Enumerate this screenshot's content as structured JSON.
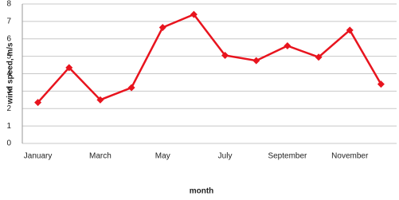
{
  "chart_data": {
    "type": "line",
    "x_label": "month",
    "y_label": "wind speed, m/s",
    "categories": [
      "January",
      null,
      "March",
      null,
      "May",
      null,
      "July",
      null,
      "September",
      null,
      "November",
      null
    ],
    "series": [
      {
        "name": "wind speed",
        "color": "#e8141e",
        "values": [
          2.35,
          4.35,
          2.5,
          3.2,
          6.65,
          7.4,
          5.05,
          4.75,
          5.6,
          4.95,
          6.5,
          3.4
        ]
      }
    ],
    "ylim": [
      0,
      8
    ],
    "yticks": [
      0,
      1,
      2,
      3,
      4,
      5,
      6,
      7,
      8
    ],
    "grid": true,
    "legend": false
  }
}
